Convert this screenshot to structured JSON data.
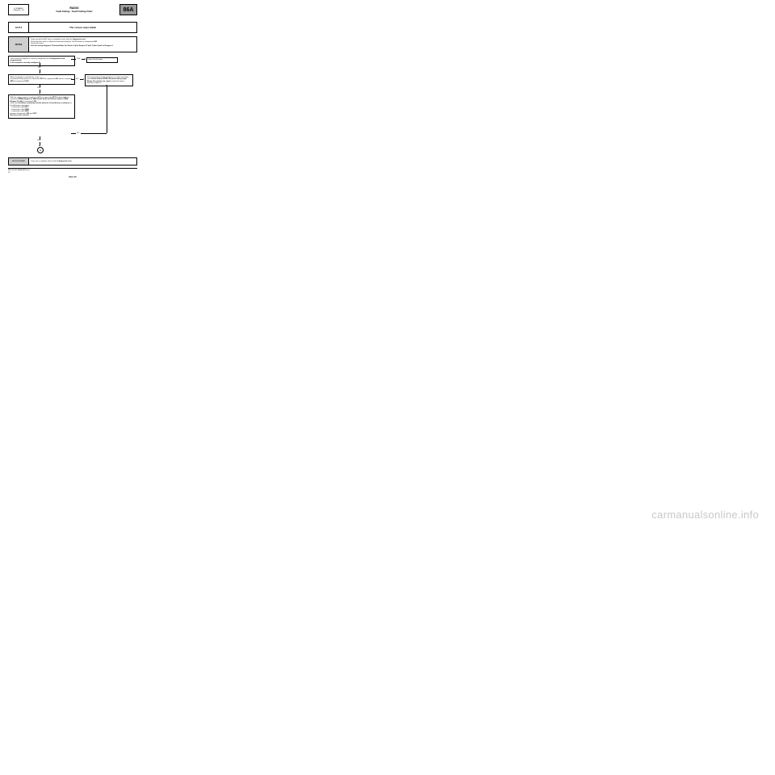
{
  "header": {
    "left_line1": "«CR RADIO",
    "left_line2": "Vdiag No.: 64",
    "title": "RADIO",
    "subtitle": "Fault finding - Fault Finding Chart",
    "code": "86A"
  },
  "alp": {
    "code": "ALP 2",
    "desc": "The screen stays blank"
  },
  "notes": {
    "label": "NOTES",
    "text": "Only consult this ALP after a complete check with the <b>diagnostic tool</b>.<br>Check that the fault is still present after pressing the On/Off button of component <b>261</b>.<br>Check the fuses.<br><b>Use the wiring diagrams Technical Note for Scénic II ph2, Espace IV ph2, Trafic II ph3 or Kangoo 2.</b>"
  },
  "flow": {
    "box1": "Check that the computer is correctly configured (see <b>Configurations and programming</b>).<br><b>Is the computer correctly configured?</b>",
    "box1_yes": "YES",
    "box1_end": "End of fault finding.",
    "box1_no": "NO",
    "box2": "When the ignition is switched on, is the +<br>accessories feed present on connection <b>SP17</b> of component <b>261</b> and on connection <b>AP8</b> of component <b>1126</b>?",
    "box2_no": "NO",
    "box2_yes": "YES",
    "box3": "If the connection is faulty and there is a repair procedure (see <b>Technical Note 6015A, Electrical wiring repair, Wiring: Precautions for repair</b>), repair the wiring, otherwise replace it.",
    "box4": "With the engine running, check for <b>+ 12 V</b> on connection <b>SP17</b> and for <b>earth</b> on connection <b>MAM (Kangoo 2)</b>, <b>MAH (Trafic II ph3 and Scénic II ph2)</b> or <b>NAM (Espace IV ph2)</b> of component <b>261</b>.<br>Check the <b>insulation, continuity and the absence of interference resistance</b> on the following connections:<br>– Connection code <b>SP17</b>,<br>– Connection code <b>34GE</b>,<br>– Connection code <b>34GF</b>,<br>between components <b>261</b> and <b>1127</b>.<br><b>Are these tests correct?</b>",
    "box4_no": "NO",
    "box4_yes": "YES"
  },
  "repair": {
    "label": "AFTER REPAIR",
    "text": "Carry out a complete check with the <b>diagnostic tool</b>."
  },
  "footer": {
    "line1": "MR-413-X61-86A000$160.mif",
    "line2": "V4",
    "pagenum": "86A-65"
  },
  "watermark": "carmanualsonline.info"
}
